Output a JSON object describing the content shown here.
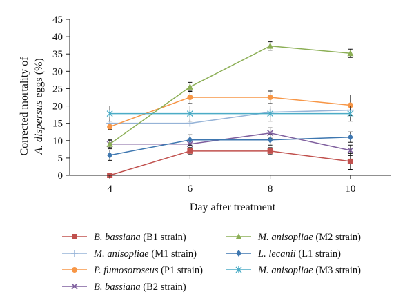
{
  "chart_data": {
    "type": "line",
    "xlabel": "Day after treatment",
    "ylabel_line1": "Corrected mortality of",
    "ylabel_line2_italic": "A. dispersus",
    "ylabel_line2_rest": " eggs (%)",
    "x": [
      4,
      6,
      8,
      10
    ],
    "xlim": [
      3,
      11
    ],
    "ylim": [
      0,
      45
    ],
    "yticks": [
      0,
      5,
      10,
      15,
      20,
      25,
      30,
      35,
      40,
      45
    ],
    "xticks": [
      4,
      6,
      8,
      10
    ],
    "grid": false,
    "legend_position": "bottom",
    "series": [
      {
        "italic": "B. bassiana",
        "rest": " (B1 strain)",
        "color": "#c0504d",
        "marker": "square",
        "values": [
          0,
          7,
          7,
          4
        ],
        "err": [
          0,
          1,
          1,
          2.3
        ]
      },
      {
        "italic": "M. anisopliae",
        "rest": " (M1 strain)",
        "color": "#95b3d7",
        "marker": "plus",
        "values": [
          15,
          15,
          18.2,
          18.8
        ],
        "err": [
          0,
          0,
          0,
          0
        ]
      },
      {
        "italic": "P. fumosoroseus",
        "rest": " (P1 strain)",
        "color": "#f79646",
        "marker": "circle",
        "values": [
          14,
          22.5,
          22.5,
          20.2
        ],
        "err": [
          0.8,
          1.8,
          1.8,
          3
        ]
      },
      {
        "italic": "B. bassiana",
        "rest": " (B2 strain)",
        "color": "#7f5f9e",
        "marker": "cross",
        "values": [
          9,
          9,
          12.2,
          7.2
        ],
        "err": [
          1,
          1,
          1.5,
          1.5
        ]
      },
      {
        "italic": "M. anisopliae",
        "rest": " (M2 strain)",
        "color": "#8caf56",
        "marker": "triangle",
        "values": [
          9,
          25.5,
          37.3,
          35.2
        ],
        "err": [
          1.3,
          1.3,
          1.2,
          1.2
        ]
      },
      {
        "italic": "L. lecanii",
        "rest": " (L1 strain)",
        "color": "#3e77b0",
        "marker": "diamond",
        "values": [
          5.8,
          10.2,
          10.2,
          11
        ],
        "err": [
          1.5,
          1.5,
          1.5,
          1.5
        ]
      },
      {
        "italic": "M. anisopliae",
        "rest": " (M3 strain)",
        "color": "#4bacc6",
        "marker": "star",
        "values": [
          17.8,
          17.8,
          17.8,
          17.8
        ],
        "err": [
          2.2,
          2.2,
          2.2,
          2.2
        ]
      }
    ]
  }
}
